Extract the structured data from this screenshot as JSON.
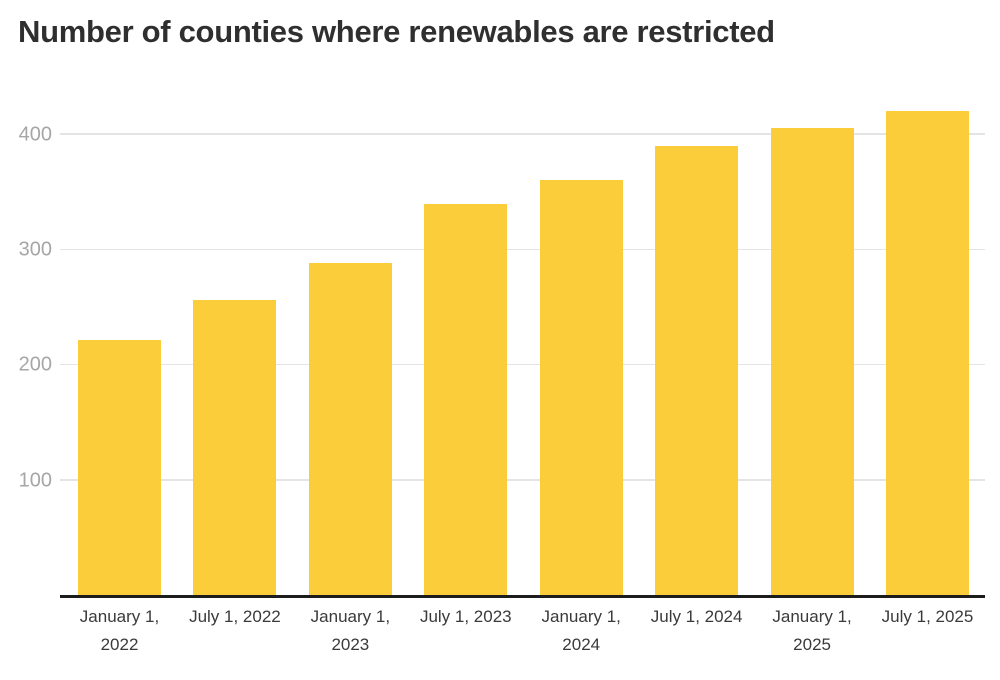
{
  "chart_data": {
    "type": "bar",
    "title": "Number of counties where renewables are restricted",
    "categories": [
      "January 1, 2022",
      "July 1, 2022",
      "January 1, 2023",
      "July 1, 2023",
      "January 1, 2024",
      "July 1, 2024",
      "January 1, 2025",
      "July 1, 2025"
    ],
    "values": [
      222,
      257,
      289,
      340,
      361,
      390,
      406,
      421
    ],
    "xlabel": "",
    "ylabel": "",
    "y_ticks": [
      100,
      200,
      300,
      400
    ],
    "ylim": [
      0,
      452
    ],
    "grid": "horizontal-only",
    "legend": "none",
    "colors": {
      "bar": "#FCCD3A",
      "background": "#FFFFFF",
      "title_text": "#2F2F2F",
      "gridline": "#E4E4E4",
      "axis_line": "#1C1C1C",
      "y_tick_label": "#A6A6A6",
      "x_tick_label": "#3A3A3A"
    }
  }
}
